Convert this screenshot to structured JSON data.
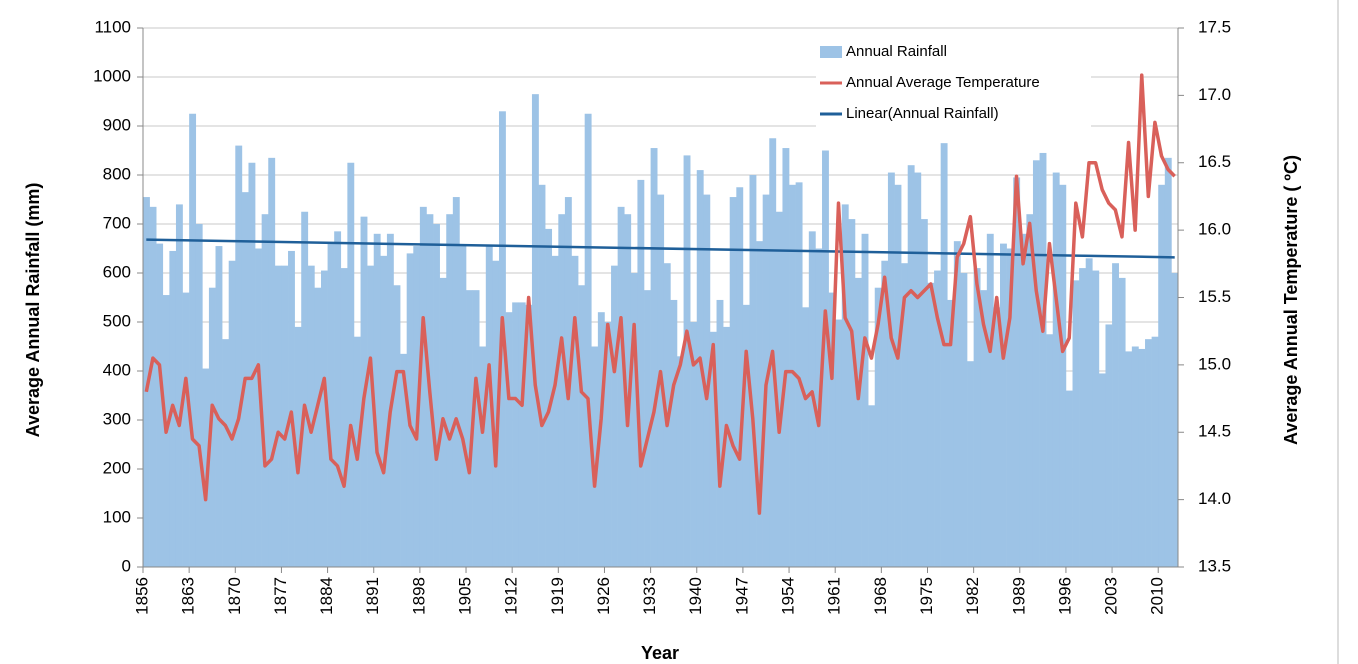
{
  "chart_data": {
    "type": "bar-line",
    "x_label": "Year",
    "y_label": "Average Annual Rainfall (mm)",
    "y2_label": "Average Annual Temperature ( ºC)",
    "categories": [
      "1856",
      null,
      null,
      null,
      null,
      null,
      null,
      "1863",
      null,
      null,
      null,
      null,
      null,
      null,
      "1870",
      null,
      null,
      null,
      null,
      null,
      null,
      "1877",
      null,
      null,
      null,
      null,
      null,
      null,
      "1884",
      null,
      null,
      null,
      null,
      null,
      null,
      "1891",
      null,
      null,
      null,
      null,
      null,
      null,
      "1898",
      null,
      null,
      null,
      null,
      null,
      null,
      "1905",
      null,
      null,
      null,
      null,
      null,
      null,
      "1912",
      null,
      null,
      null,
      null,
      null,
      null,
      "1919",
      null,
      null,
      null,
      null,
      null,
      null,
      "1926",
      null,
      null,
      null,
      null,
      null,
      null,
      "1933",
      null,
      null,
      null,
      null,
      null,
      null,
      "1940",
      null,
      null,
      null,
      null,
      null,
      null,
      "1947",
      null,
      null,
      null,
      null,
      null,
      null,
      "1954",
      null,
      null,
      null,
      null,
      null,
      null,
      "1961",
      null,
      null,
      null,
      null,
      null,
      null,
      "1968",
      null,
      null,
      null,
      null,
      null,
      null,
      "1975",
      null,
      null,
      null,
      null,
      null,
      null,
      "1982",
      null,
      null,
      null,
      null,
      null,
      null,
      "1989",
      null,
      null,
      null,
      null,
      null,
      null,
      "1996",
      null,
      null,
      null,
      null,
      null,
      null,
      "2003",
      null,
      null,
      null,
      null,
      null,
      null,
      "2010",
      null,
      null
    ],
    "series": [
      {
        "name": "Annual Rainfall",
        "color": "#9dc3e6",
        "values": [
          755,
          735,
          660,
          555,
          645,
          740,
          560,
          925,
          700,
          405,
          570,
          655,
          465,
          625,
          860,
          765,
          825,
          650,
          720,
          835,
          615,
          615,
          645,
          490,
          725,
          615,
          570,
          605,
          660,
          685,
          610,
          825,
          470,
          715,
          615,
          680,
          635,
          680,
          575,
          435,
          640,
          655,
          735,
          720,
          700,
          590,
          720,
          755,
          655,
          565,
          565,
          450,
          655,
          625,
          930,
          520,
          540,
          540,
          535,
          965,
          780,
          690,
          635,
          720,
          755,
          635,
          575,
          925,
          450,
          520,
          500,
          615,
          735,
          720,
          600,
          790,
          565,
          855,
          760,
          620,
          545,
          430,
          840,
          500,
          810,
          760,
          480,
          545,
          490,
          755,
          775,
          535,
          800,
          665,
          760,
          875,
          725,
          855,
          780,
          785,
          530,
          685,
          650,
          850,
          560,
          505,
          740,
          710,
          590,
          680,
          330,
          570,
          625,
          805,
          780,
          620,
          820,
          805,
          710,
          580,
          605,
          865,
          545,
          665,
          600,
          420,
          610,
          565,
          680,
          530,
          660,
          650,
          795,
          680,
          720,
          830,
          845,
          475,
          805,
          780,
          360,
          585,
          610,
          630,
          605,
          395,
          495,
          620,
          590,
          440,
          450,
          445,
          465,
          470,
          780,
          835,
          600
        ]
      },
      {
        "name": "Annual Average Temperature",
        "color": "#d9605a",
        "axis": "y2",
        "values": [
          14.8,
          15.05,
          15.0,
          14.5,
          14.7,
          14.55,
          14.9,
          14.45,
          14.4,
          14.0,
          14.7,
          14.6,
          14.55,
          14.45,
          14.6,
          14.9,
          14.9,
          15.0,
          14.25,
          14.3,
          14.5,
          14.45,
          14.65,
          14.2,
          14.7,
          14.5,
          14.7,
          14.9,
          14.3,
          14.25,
          14.1,
          14.55,
          14.3,
          14.75,
          15.05,
          14.35,
          14.2,
          14.65,
          14.95,
          14.95,
          14.55,
          14.45,
          15.35,
          14.8,
          14.3,
          14.6,
          14.45,
          14.6,
          14.45,
          14.2,
          14.9,
          14.5,
          15.0,
          14.25,
          15.35,
          14.75,
          14.75,
          14.7,
          15.5,
          14.85,
          14.55,
          14.65,
          14.85,
          15.2,
          14.75,
          15.35,
          14.8,
          14.75,
          14.1,
          14.6,
          15.3,
          14.95,
          15.35,
          14.55,
          15.3,
          14.25,
          14.45,
          14.65,
          14.95,
          14.55,
          14.85,
          15.0,
          15.25,
          15.0,
          15.05,
          14.75,
          15.15,
          14.1,
          14.55,
          14.4,
          14.3,
          15.1,
          14.6,
          13.9,
          14.85,
          15.1,
          14.5,
          14.95,
          14.95,
          14.9,
          14.75,
          14.8,
          14.55,
          15.4,
          14.9,
          16.2,
          15.35,
          15.25,
          14.75,
          15.2,
          15.05,
          15.3,
          15.65,
          15.2,
          15.05,
          15.5,
          15.55,
          15.5,
          15.55,
          15.6,
          15.35,
          15.15,
          15.15,
          15.8,
          15.9,
          16.1,
          15.6,
          15.3,
          15.1,
          15.5,
          15.05,
          15.35,
          16.4,
          15.75,
          16.05,
          15.55,
          15.25,
          15.9,
          15.5,
          15.1,
          15.2,
          16.2,
          15.95,
          16.5,
          16.5,
          16.3,
          16.2,
          16.15,
          15.95,
          16.65,
          16.0,
          17.15,
          16.25,
          16.8,
          16.55,
          16.45,
          16.4
        ]
      }
    ],
    "trendline": {
      "name": "Linear(Annual Rainfall)",
      "color": "#1f5f99",
      "values": [
        668,
        632
      ]
    },
    "ylim": [
      0,
      1100
    ],
    "yticks": [
      0,
      100,
      200,
      300,
      400,
      500,
      600,
      700,
      800,
      900,
      1000,
      1100
    ],
    "y2lim": [
      13.5,
      17.5
    ],
    "y2ticks": [
      13.5,
      {
        "value": 14,
        "label": "14.0"
      },
      14.5,
      {
        "value": 15,
        "label": "15.0"
      },
      15.5,
      {
        "value": 16,
        "label": "16.0"
      },
      16.5,
      {
        "value": 17,
        "label": "17.0"
      },
      17.5
    ],
    "grid": true,
    "legend": "top-right"
  }
}
